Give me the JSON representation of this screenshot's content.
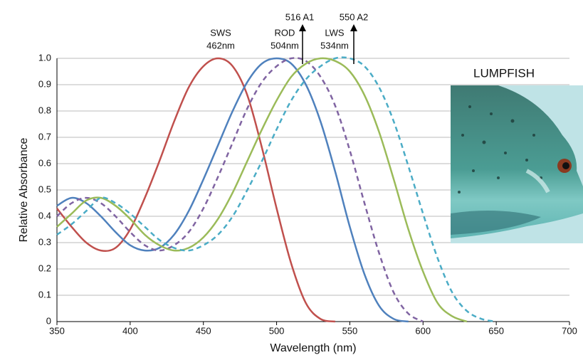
{
  "chart_data": {
    "type": "line",
    "xlabel": "Wavelength (nm)",
    "ylabel": "Relative Absorbance",
    "x": [
      350,
      360,
      370,
      380,
      390,
      400,
      410,
      420,
      430,
      440,
      450,
      460,
      470,
      480,
      490,
      500,
      510,
      520,
      530,
      540,
      550,
      560,
      570,
      580,
      590,
      600,
      610,
      620,
      630,
      640,
      650,
      660,
      670,
      680,
      690,
      700
    ],
    "series": [
      {
        "color": "#c0504d",
        "dashed": false,
        "values": [
          0.43,
          0.36,
          0.3,
          0.27,
          0.28,
          0.35,
          0.47,
          0.61,
          0.76,
          0.89,
          0.97,
          1.0,
          0.97,
          0.86,
          0.66,
          0.43,
          0.22,
          0.07,
          0.01,
          0,
          null,
          null,
          null,
          null,
          null,
          null,
          null,
          null,
          null,
          null,
          null,
          null,
          null,
          null,
          null,
          null
        ]
      },
      {
        "color": "#4f81bd",
        "dashed": false,
        "values": [
          0.44,
          0.47,
          0.45,
          0.4,
          0.34,
          0.29,
          0.27,
          0.28,
          0.33,
          0.42,
          0.54,
          0.67,
          0.8,
          0.91,
          0.98,
          1.0,
          0.98,
          0.9,
          0.76,
          0.57,
          0.36,
          0.18,
          0.06,
          0.01,
          0,
          null,
          null,
          null,
          null,
          null,
          null,
          null,
          null,
          null,
          null,
          null
        ]
      },
      {
        "color": "#8064a2",
        "dashed": true,
        "values": [
          0.4,
          0.45,
          0.47,
          0.45,
          0.4,
          0.34,
          0.29,
          0.27,
          0.29,
          0.34,
          0.43,
          0.55,
          0.68,
          0.81,
          0.91,
          0.97,
          1.0,
          0.99,
          0.93,
          0.82,
          0.65,
          0.45,
          0.26,
          0.11,
          0.03,
          0,
          null,
          null,
          null,
          null,
          null,
          null,
          null,
          null,
          null,
          null
        ]
      },
      {
        "color": "#9bbb59",
        "dashed": false,
        "values": [
          0.36,
          0.41,
          0.46,
          0.47,
          0.44,
          0.39,
          0.33,
          0.29,
          0.27,
          0.28,
          0.32,
          0.39,
          0.49,
          0.61,
          0.73,
          0.84,
          0.93,
          0.98,
          1.0,
          0.99,
          0.95,
          0.86,
          0.72,
          0.54,
          0.35,
          0.19,
          0.07,
          0.02,
          0,
          null,
          null,
          null,
          null,
          null,
          null,
          null
        ]
      },
      {
        "color": "#4bacc6",
        "dashed": true,
        "values": [
          0.33,
          0.37,
          0.42,
          0.47,
          0.45,
          0.41,
          0.36,
          0.31,
          0.28,
          0.27,
          0.29,
          0.33,
          0.4,
          0.5,
          0.61,
          0.73,
          0.84,
          0.92,
          0.97,
          1.0,
          1.0,
          0.97,
          0.89,
          0.76,
          0.59,
          0.41,
          0.24,
          0.11,
          0.04,
          0.01,
          0,
          null,
          null,
          null,
          null,
          null
        ]
      }
    ],
    "xlim": [
      350,
      700
    ],
    "xticks": [
      350,
      400,
      450,
      500,
      550,
      600,
      650,
      700
    ],
    "ylim": [
      0,
      1
    ],
    "yticks": [
      0,
      0.1,
      0.2,
      0.3,
      0.4,
      0.5,
      0.6,
      0.7,
      0.8,
      0.9,
      {
        "value": 1,
        "label": "1.0"
      }
    ],
    "grid": true,
    "annotations": [
      "SWS",
      "462nm",
      "ROD",
      "504nm",
      "516 A1",
      "LWS",
      "534nm",
      "550 A2",
      "LUMPFISH"
    ]
  }
}
